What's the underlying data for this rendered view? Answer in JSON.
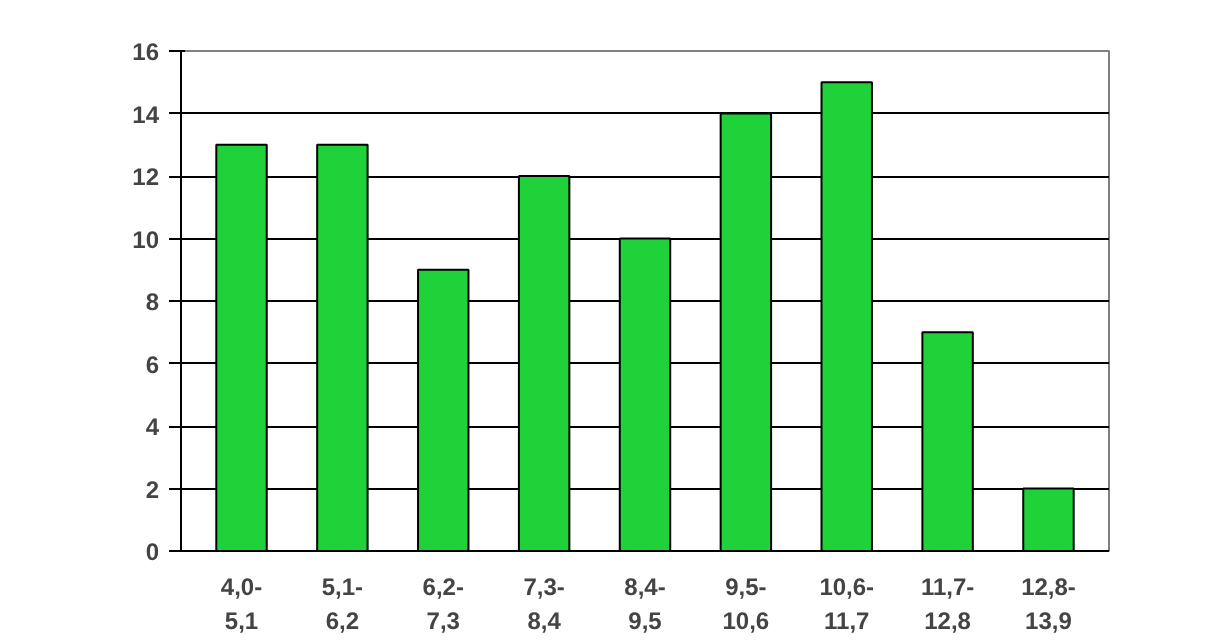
{
  "chart_data": {
    "type": "bar",
    "categories": [
      "4,0-\n5,1",
      "5,1-\n6,2",
      "6,2-\n7,3",
      "7,3-\n8,4",
      "8,4-\n9,5",
      "9,5-\n10,6",
      "10,6-\n11,7",
      "11,7-\n12,8",
      "12,8-\n13,9"
    ],
    "values": [
      13,
      13,
      9,
      12,
      10,
      14,
      15,
      7,
      2
    ],
    "color": "#1fd23a",
    "ylim": [
      0,
      16
    ],
    "yticks": [
      0,
      2,
      4,
      6,
      8,
      10,
      12,
      14,
      16
    ],
    "grid": "y"
  }
}
